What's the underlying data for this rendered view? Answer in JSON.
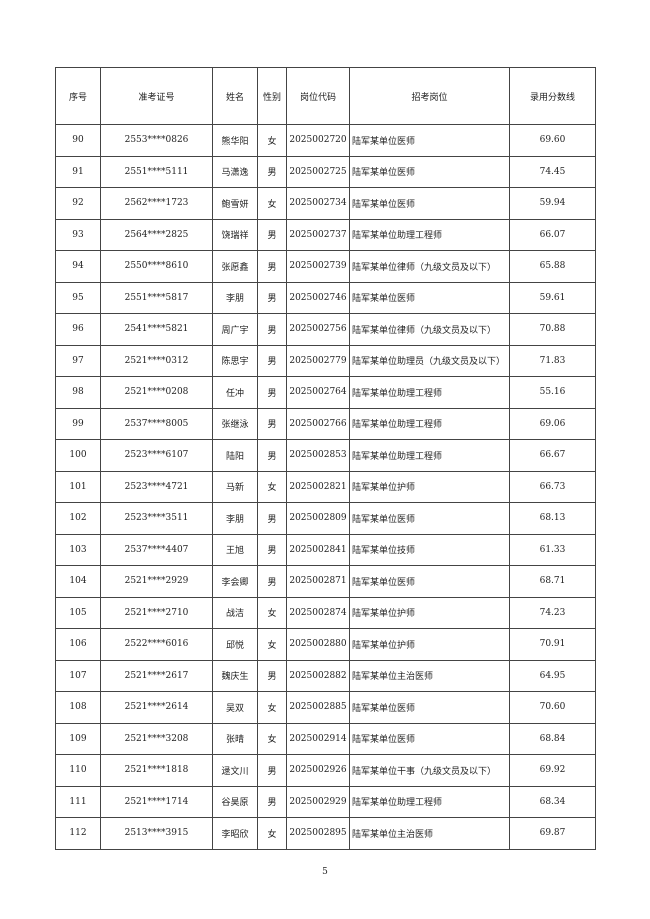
{
  "headers": [
    "序号",
    "准考证号",
    "姓名",
    "性别",
    "岗位代码",
    "招考岗位",
    "录用分数线"
  ],
  "rows": [
    [
      "90",
      "2553****0826",
      "熊华阳",
      "女",
      "2025002720",
      "陆军某单位医师",
      "69.60"
    ],
    [
      "91",
      "2551****5111",
      "马潇逸",
      "男",
      "2025002725",
      "陆军某单位医师",
      "74.45"
    ],
    [
      "92",
      "2562****1723",
      "鲍雪妍",
      "女",
      "2025002734",
      "陆军某单位医师",
      "59.94"
    ],
    [
      "93",
      "2564****2825",
      "饶瑞祥",
      "男",
      "2025002737",
      "陆军某单位助理工程师",
      "66.07"
    ],
    [
      "94",
      "2550****8610",
      "张愿鑫",
      "男",
      "2025002739",
      "陆军某单位律师（九级文员及以下）",
      "65.88"
    ],
    [
      "95",
      "2551****5817",
      "李朋",
      "男",
      "2025002746",
      "陆军某单位医师",
      "59.61"
    ],
    [
      "96",
      "2541****5821",
      "周广宇",
      "男",
      "2025002756",
      "陆军某单位律师（九级文员及以下）",
      "70.88"
    ],
    [
      "97",
      "2521****0312",
      "陈思宇",
      "男",
      "2025002779",
      "陆军某单位助理员（九级文员及以下）",
      "71.83"
    ],
    [
      "98",
      "2521****0208",
      "任冲",
      "男",
      "2025002764",
      "陆军某单位助理工程师",
      "55.16"
    ],
    [
      "99",
      "2537****8005",
      "张继泳",
      "男",
      "2025002766",
      "陆军某单位助理工程师",
      "69.06"
    ],
    [
      "100",
      "2523****6107",
      "陆阳",
      "男",
      "2025002853",
      "陆军某单位助理工程师",
      "66.67"
    ],
    [
      "101",
      "2523****4721",
      "马新",
      "女",
      "2025002821",
      "陆军某单位护师",
      "66.73"
    ],
    [
      "102",
      "2523****3511",
      "李朋",
      "男",
      "2025002809",
      "陆军某单位医师",
      "68.13"
    ],
    [
      "103",
      "2537****4407",
      "王旭",
      "男",
      "2025002841",
      "陆军某单位技师",
      "61.33"
    ],
    [
      "104",
      "2521****2929",
      "李会卿",
      "男",
      "2025002871",
      "陆军某单位医师",
      "68.71"
    ],
    [
      "105",
      "2521****2710",
      "战洁",
      "女",
      "2025002874",
      "陆军某单位护师",
      "74.23"
    ],
    [
      "106",
      "2522****6016",
      "邱悦",
      "女",
      "2025002880",
      "陆军某单位护师",
      "70.91"
    ],
    [
      "107",
      "2521****2617",
      "魏庆生",
      "男",
      "2025002882",
      "陆军某单位主治医师",
      "64.95"
    ],
    [
      "108",
      "2521****2614",
      "吴双",
      "女",
      "2025002885",
      "陆军某单位医师",
      "70.60"
    ],
    [
      "109",
      "2521****3208",
      "张晴",
      "女",
      "2025002914",
      "陆军某单位医师",
      "68.84"
    ],
    [
      "110",
      "2521****1818",
      "逯文川",
      "男",
      "2025002926",
      "陆军某单位干事（九级文员及以下）",
      "69.92"
    ],
    [
      "111",
      "2521****1714",
      "谷昊原",
      "男",
      "2025002929",
      "陆军某单位助理工程师",
      "68.34"
    ],
    [
      "112",
      "2513****3915",
      "李昭欣",
      "女",
      "2025002895",
      "陆军某单位主治医师",
      "69.87"
    ]
  ],
  "page_number": "5"
}
